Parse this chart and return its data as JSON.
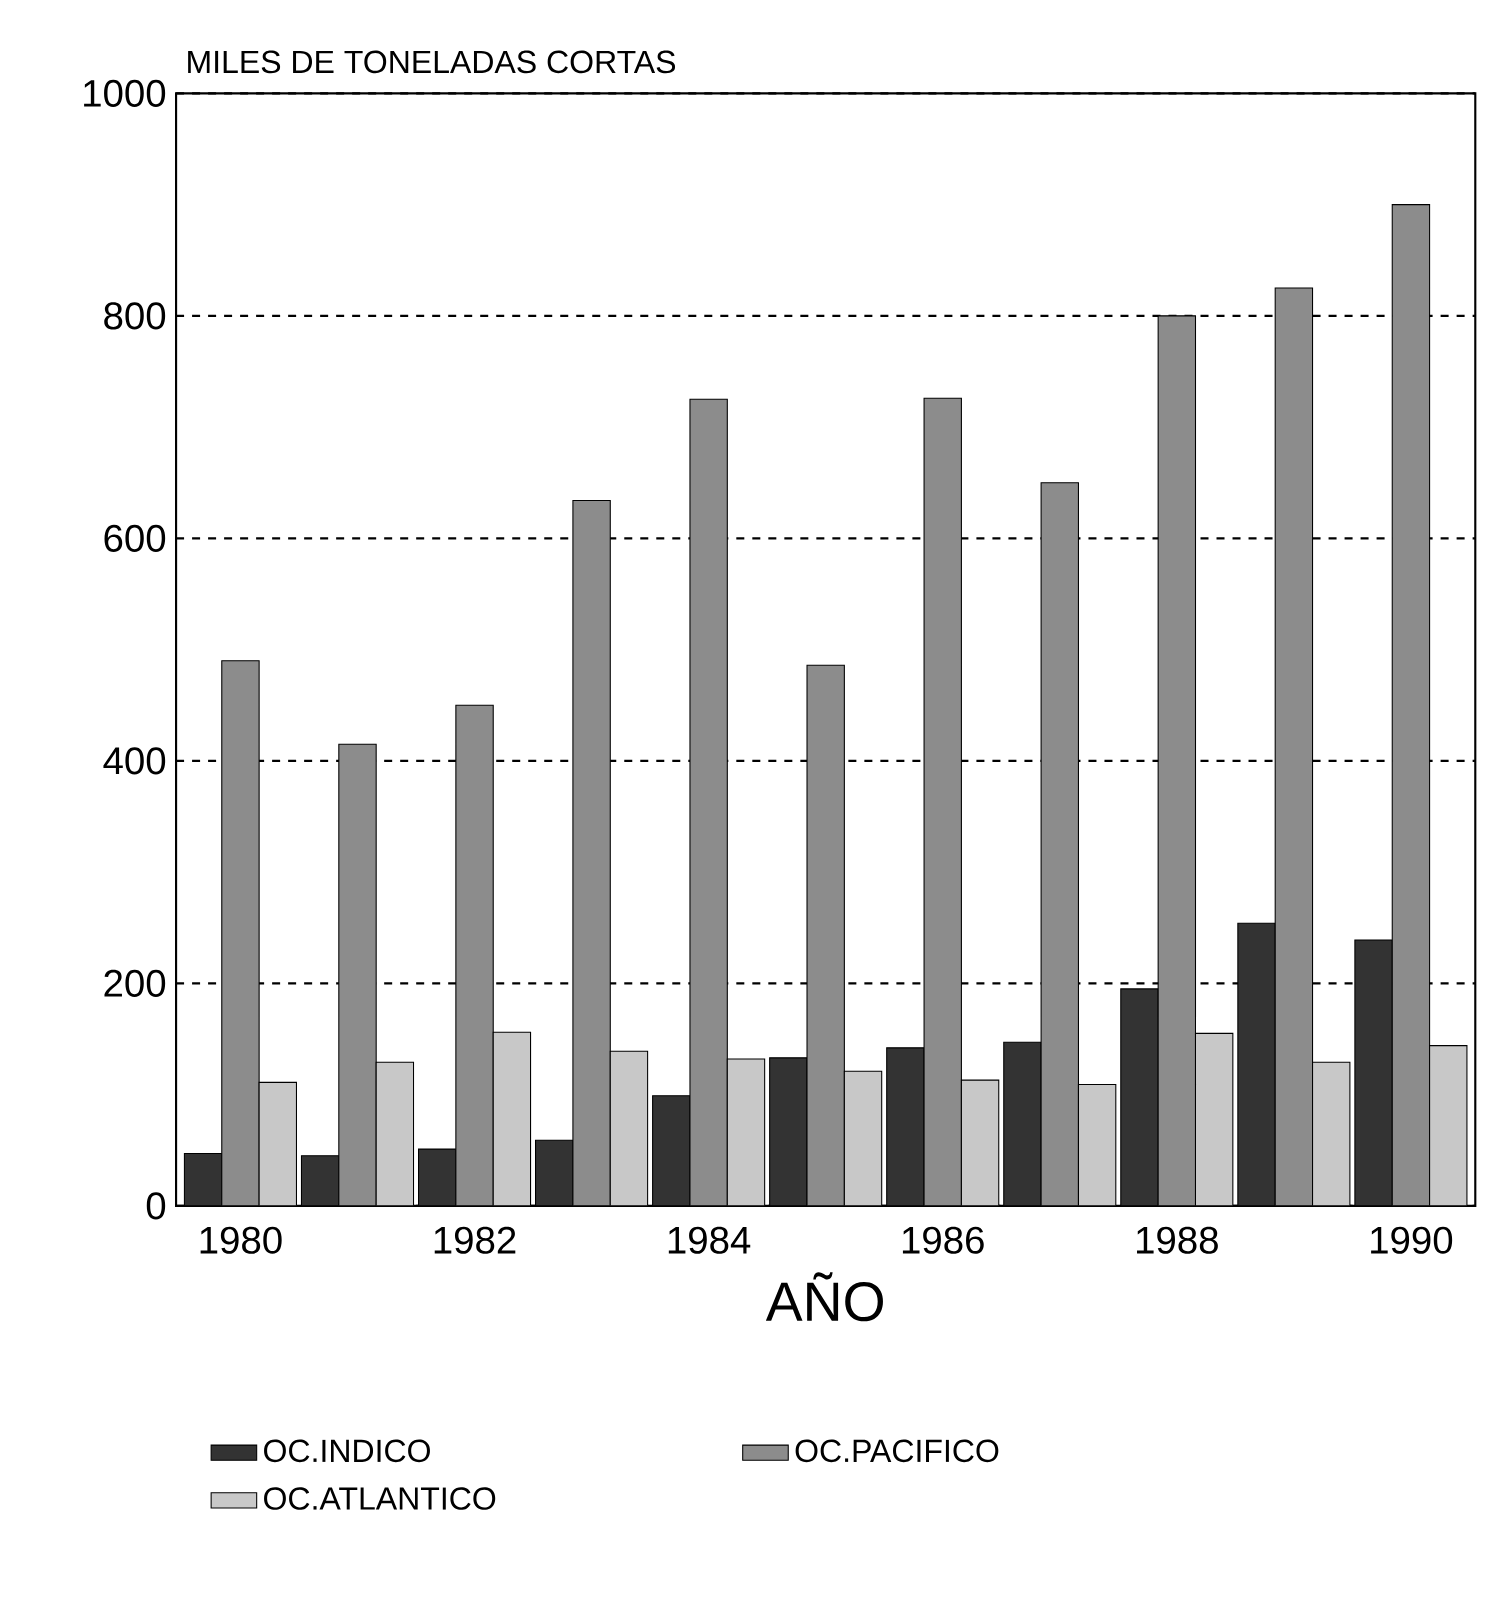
{
  "chart_data": {
    "type": "bar",
    "title": "MILES DE TONELADAS CORTAS",
    "xlabel": "AÑO",
    "categories": [
      "1980",
      null,
      "1982",
      null,
      "1984",
      null,
      "1986",
      null,
      "1988",
      null,
      "1990"
    ],
    "series": [
      {
        "name": "OC.INDICO",
        "color": "#333333",
        "values": [
          47,
          45,
          51,
          59,
          99,
          133,
          142,
          147,
          195,
          254,
          239
        ]
      },
      {
        "name": "OC.PACIFICO",
        "color": "#8c8c8c",
        "values": [
          490,
          415,
          450,
          634,
          725,
          486,
          726,
          650,
          800,
          825,
          900
        ]
      },
      {
        "name": "OC.ATLANTICO",
        "color": "#c8c8c8",
        "values": [
          111,
          129,
          156,
          139,
          132,
          121,
          113,
          109,
          155,
          129,
          144
        ]
      }
    ],
    "ylim": [
      0,
      1000
    ],
    "yticks": [
      0,
      200,
      400,
      600,
      800,
      1000
    ],
    "grid": "y",
    "legend": "bottom"
  }
}
